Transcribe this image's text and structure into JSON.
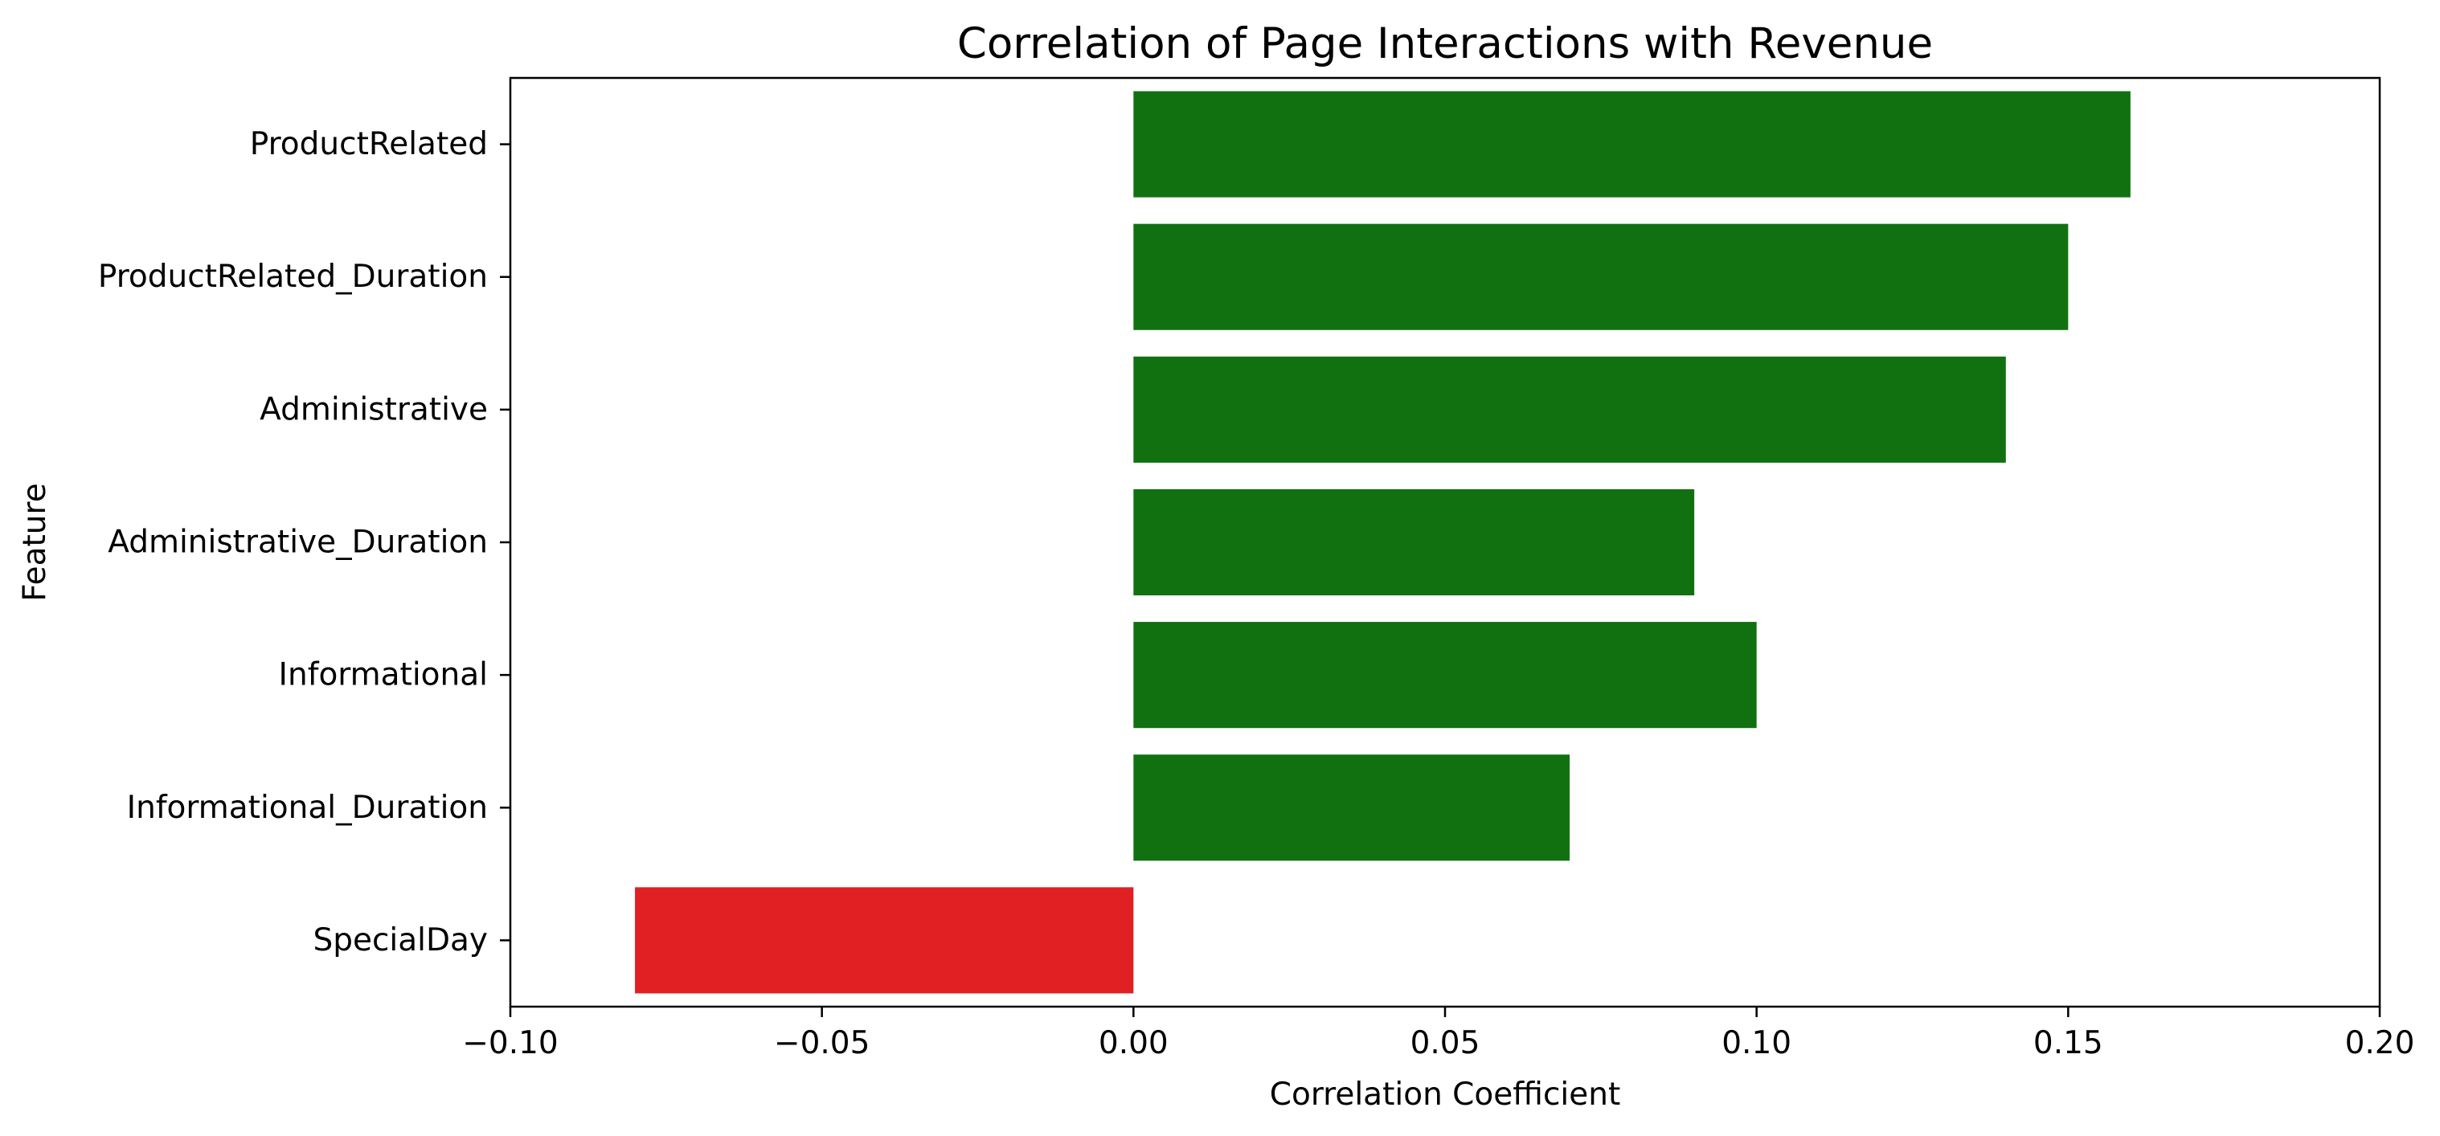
{
  "chart_data": {
    "type": "bar",
    "orientation": "horizontal",
    "title": "Correlation of Page Interactions with Revenue",
    "xlabel": "Correlation Coefficient",
    "ylabel": "Feature",
    "categories": [
      "ProductRelated",
      "ProductRelated_Duration",
      "Administrative",
      "Administrative_Duration",
      "Informational",
      "Informational_Duration",
      "SpecialDay"
    ],
    "values": [
      0.16,
      0.15,
      0.14,
      0.09,
      0.1,
      0.07,
      -0.08
    ],
    "xlim": [
      -0.1,
      0.2
    ],
    "xticks": [
      -0.1,
      -0.05,
      0.0,
      0.05,
      0.1,
      0.15,
      0.2
    ],
    "xtick_labels": [
      "−0.10",
      "−0.05",
      "0.00",
      "0.05",
      "0.10",
      "0.15",
      "0.20"
    ],
    "grid": false,
    "colors": {
      "positive": "#117111",
      "negative": "#e02022"
    }
  }
}
